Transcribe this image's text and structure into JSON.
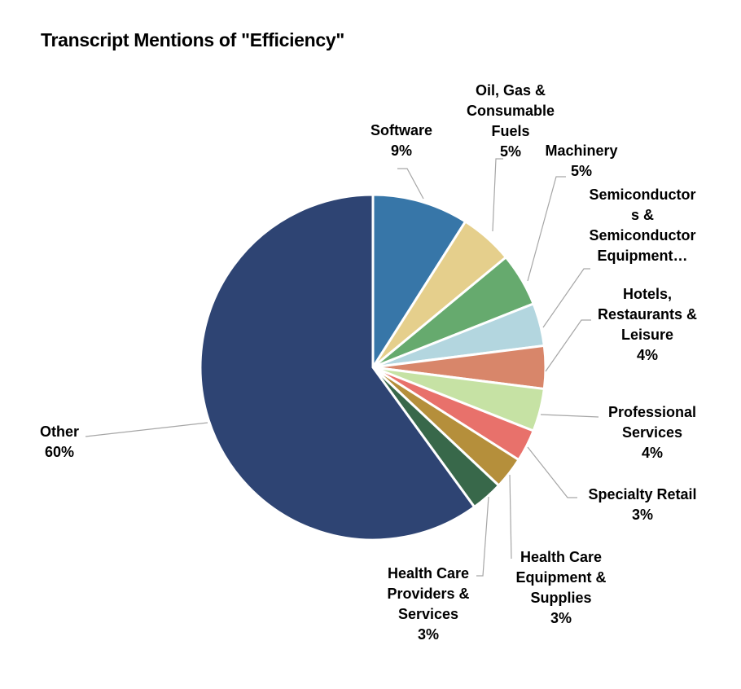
{
  "chart_data": {
    "type": "pie",
    "title": "Transcript Mentions of \"Efficiency\"",
    "start_angle_deg": 0,
    "direction": "clockwise",
    "slices": [
      {
        "label": "Software",
        "value": 9,
        "value_label": "9%",
        "color": "#3776a8"
      },
      {
        "label": "Oil, Gas & Consumable Fuels",
        "value": 5,
        "value_label": "5%",
        "color": "#e5cf8c"
      },
      {
        "label": "Machinery",
        "value": 5,
        "value_label": "5%",
        "color": "#66aa6e"
      },
      {
        "label": "Semiconductors & Semiconductor Equipment…",
        "value": 4,
        "value_label": "",
        "color": "#b3d6df"
      },
      {
        "label": "Hotels, Restaurants & Leisure",
        "value": 4,
        "value_label": "4%",
        "color": "#d8866a"
      },
      {
        "label": "Professional Services",
        "value": 4,
        "value_label": "4%",
        "color": "#c6e2a4"
      },
      {
        "label": "Specialty Retail",
        "value": 3,
        "value_label": "3%",
        "color": "#e8716b"
      },
      {
        "label": "Health Care Equipment & Supplies",
        "value": 3,
        "value_label": "3%",
        "color": "#b58f3b"
      },
      {
        "label": "Health Care Providers & Services",
        "value": 3,
        "value_label": "3%",
        "color": "#38684a"
      },
      {
        "label": "Other",
        "value": 60,
        "value_label": "60%",
        "color": "#2e4473"
      }
    ]
  }
}
